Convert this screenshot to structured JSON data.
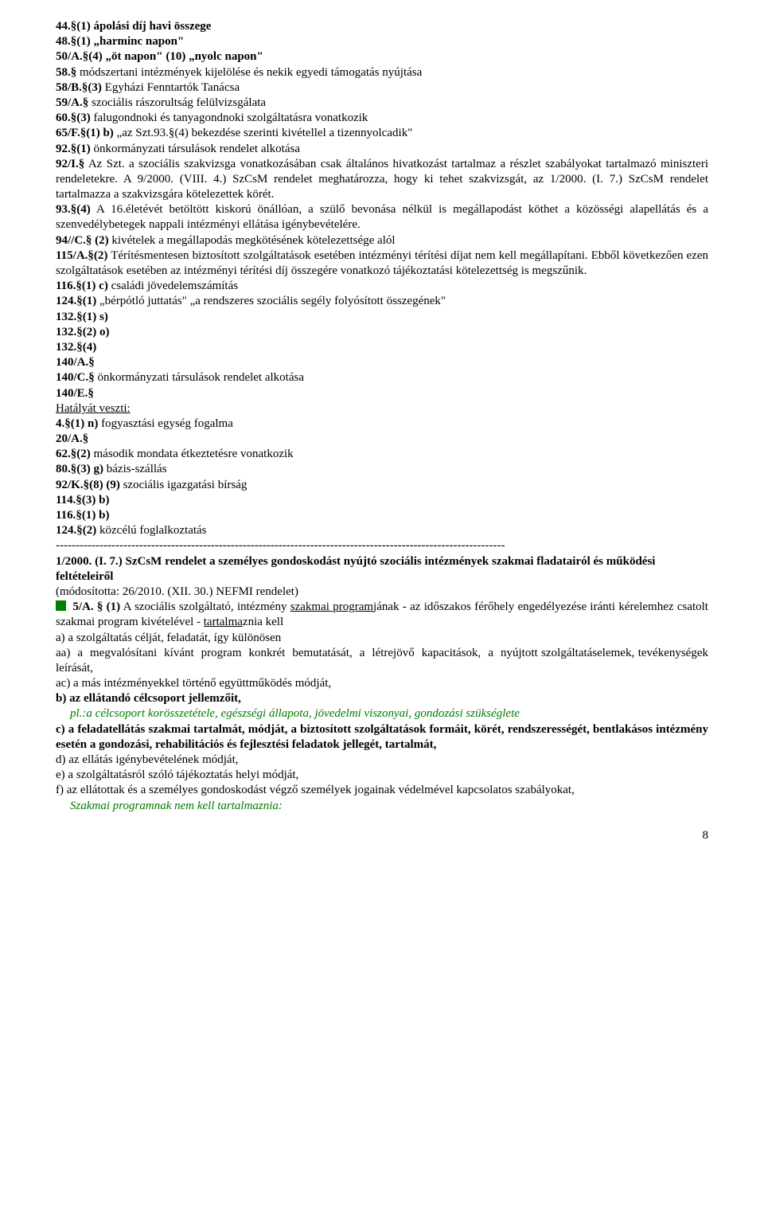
{
  "l1": "44.§(1) ápolási díj havi összege",
  "l2": "48.§(1) „harminc napon\"",
  "l3": "50/A.§(4) „öt napon\" (10) „nyolc napon\"",
  "l4": "58.§ módszertani intézmények kijelölése és nekik egyedi támogatás nyújtása",
  "l5": "58/B.§(3) Egyházi Fenntartók Tanácsa",
  "l6": "59/A.§ szociális rászorultság felülvizsgálata",
  "l7": "60.§(3) falugondnoki és tanyagondnoki szolgáltatásra vonatkozik",
  "l8": "65/F.§(1) b) „az Szt.93.§(4) bekezdése szerinti kivétellel a tizennyolcadik\"",
  "l9": "92.§(1) önkormányzati társulások rendelet alkotása",
  "l10": "92/I.§ Az Szt. a szociális szakvizsga vonatkozásában csak általános hivatkozást tartalmaz a részlet szabályokat tartalmazó miniszteri rendeletekre. A 9/2000. (VIII. 4.) SzCsM rendelet meghatározza, hogy ki tehet szakvizsgát, az 1/2000. (I. 7.) SzCsM rendelet tartalmazza a szakvizsgára kötelezettek körét.",
  "l11": "93.§(4) A 16.életévét betöltött kiskorú önállóan, a szülő bevonása nélkül is megállapodást köthet a közösségi alapellátás és a szenvedélybetegek nappali intézményi ellátása igénybevételére.",
  "l12": "94//C.§ (2) kivételek a megállapodás megkötésének kötelezettsége alól",
  "l13": "115/A.§(2) Térítésmentesen biztosított szolgáltatások esetében intézményi térítési díjat nem kell megállapítani. Ebből következően ezen szolgáltatások esetében az intézményi térítési díj összegére vonatkozó tájékoztatási kötelezettség is megszűnik.",
  "l14": "116.§(1) c) családi jövedelemszámítás",
  "l15": "124.§(1) „bérpótló juttatás\" „a rendszeres szociális segély folyósított összegének\"",
  "l16": "132.§(1) s)",
  "l17": "132.§(2) o)",
  "l18": "132.§(4)",
  "l19": "140/A.§",
  "l20": "140/C.§ önkormányzati társulások rendelet alkotása",
  "l21": "140/E.§",
  "h1": "Hatályát veszti:",
  "l22": "4.§(1) n) fogyasztási egység fogalma",
  "l23": "20/A.§",
  "l24": "62.§(2) második mondata étkeztetésre vonatkozik",
  "l25": "80.§(3) g) bázis-szállás",
  "l26": "92/K.§(8) (9) szociális igazgatási bírság",
  "l27": "114.§(3) b)",
  "l28": "116.§(1) b)",
  "l29": "124.§(2) közcélú foglalkoztatás",
  "sep": "-----------------------------------------------------------------------------------------------------------------",
  "title": "1/2000. (I. 7.) SzCsM rendelet a személyes gondoskodást nyújtó szociális intézmények szakmai fladatairól és működési feltételeiről",
  "subtitle": "(módosította: 26/2010. (XII. 30.) NEFMI rendelet)",
  "p1_a": "5/A. § (1)",
  "p1_b": "A szociális szolgáltató, intézmény ",
  "p1_u": "szakmai program",
  "p1_c": "jának - az időszakos férőhely engedélyezése iránti kérelemhez csatolt szakmai program kivételével - ",
  "p1_u2": "tartalma",
  "p1_d": "znia kell",
  "p2": "a) a szolgáltatás célját, feladatát, így különösen",
  "p3": "aa) a megvalósítani kívánt program konkrét bemutatását, a létrejövő kapacitások, a nyújtott szolgáltatáselemek, tevékenységek leírását,",
  "p4": "ac) a más intézményekkel történő együttműködés módját,",
  "p5": "b) az ellátandó célcsoport jellemzőit,",
  "note1": "pl.:a célcsoport korösszetétele, egészségi állapota, jövedelmi viszonyai, gondozási szükséglete",
  "p6": "c) a feladatellátás szakmai tartalmát, módját, a biztosított szolgáltatások formáit, körét, rendszerességét, bentlakásos intézmény esetén a gondozási, rehabilitációs és fejlesztési feladatok jellegét, tartalmát,",
  "p7": "d) az ellátás igénybevételének módját,",
  "p8": "e) a szolgáltatásról szóló tájékoztatás helyi módját,",
  "p9": "f) az ellátottak és a személyes gondoskodást végző személyek jogainak védelmével kapcsolatos szabályokat,",
  "note2": "Szakmai programnak nem kell tartalmaznia:",
  "pagenum": "8"
}
